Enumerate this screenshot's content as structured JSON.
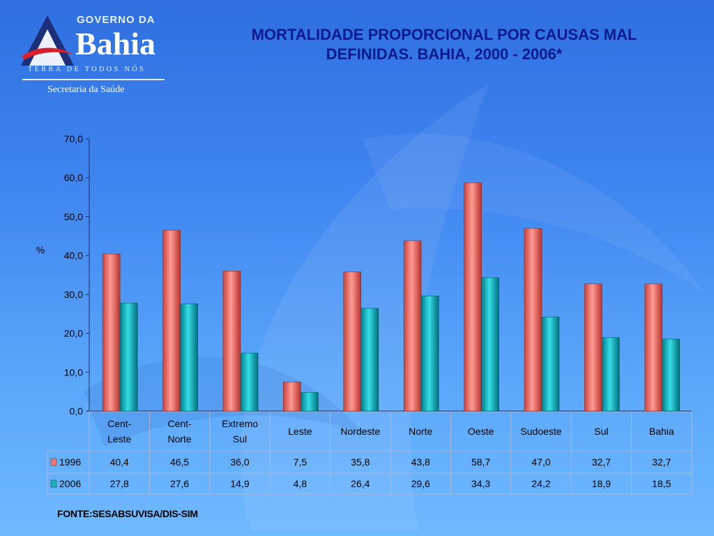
{
  "header": {
    "logo_top": "GOVERNO DA",
    "logo_name": "Bahia",
    "logo_tagline": "TERRA DE TODOS NÓS",
    "logo_dept": "Secretaria da Saúde",
    "title_line1": "MORTALIDADE PROPORCIONAL POR CAUSAS MAL",
    "title_line2": "DEFINIDAS. BAHIA, 2000 - 2006*"
  },
  "source": "FONTE:SESABSUVISA/DIS-SIM",
  "chart_data": {
    "type": "bar",
    "ylabel": "%",
    "ylim": [
      0,
      70
    ],
    "yticks": [
      "0,0",
      "10,0",
      "20,0",
      "30,0",
      "40,0",
      "50,0",
      "60,0",
      "70,0"
    ],
    "grid": false,
    "legend": "data-table",
    "categories": [
      "Cent-Leste",
      "Cent-Norte",
      "Extremo Sul",
      "Leste",
      "Nordeste",
      "Norte",
      "Oeste",
      "Sudoeste",
      "Sul",
      "Bahia"
    ],
    "category_labels": [
      [
        "Cent-",
        "Leste"
      ],
      [
        "Cent-",
        "Norte"
      ],
      [
        "Extremo",
        "Sul"
      ],
      [
        "Leste"
      ],
      [
        "Nordeste"
      ],
      [
        "Norte"
      ],
      [
        "Oeste"
      ],
      [
        "Sudoeste"
      ],
      [
        "Sul"
      ],
      [
        "Bahia"
      ]
    ],
    "series": [
      {
        "name": "1996",
        "color": "#f07a72",
        "values": [
          40.4,
          46.5,
          36.0,
          7.5,
          35.8,
          43.8,
          58.7,
          47.0,
          32.7,
          32.7
        ],
        "labels": [
          "40,4",
          "46,5",
          "36,0",
          "7,5",
          "35,8",
          "43,8",
          "58,7",
          "47,0",
          "32,7",
          "32,7"
        ]
      },
      {
        "name": "2006",
        "color": "#17b3bd",
        "values": [
          27.8,
          27.6,
          14.9,
          4.8,
          26.4,
          29.6,
          34.3,
          24.2,
          18.9,
          18.5
        ],
        "labels": [
          "27,8",
          "27,6",
          "14,9",
          "4,8",
          "26,4",
          "29,6",
          "34,3",
          "24,2",
          "18,9",
          "18,5"
        ]
      }
    ]
  }
}
